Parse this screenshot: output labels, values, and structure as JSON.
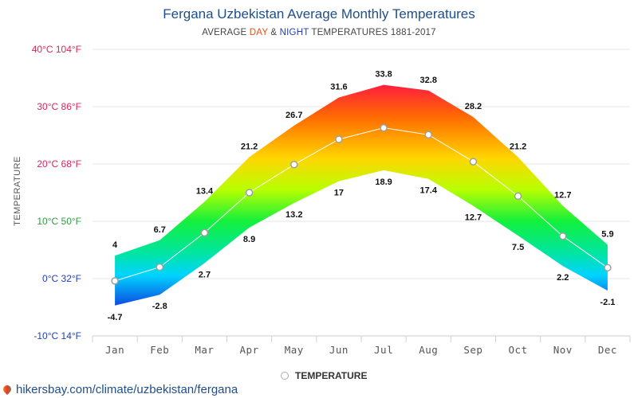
{
  "chart_data": {
    "type": "area",
    "title": "Fergana Uzbekistan Average Monthly Temperatures",
    "subtitle_prefix": "AVERAGE ",
    "subtitle_day": "DAY",
    "subtitle_amp": " & ",
    "subtitle_night": "NIGHT",
    "subtitle_suffix": " TEMPERATURES 1881-2017",
    "ylabel": "TEMPERATURE",
    "categories": [
      "Jan",
      "Feb",
      "Mar",
      "Apr",
      "May",
      "Jun",
      "Jul",
      "Aug",
      "Sep",
      "Oct",
      "Nov",
      "Dec"
    ],
    "series": [
      {
        "name": "DAY",
        "values": [
          4,
          6.7,
          13.4,
          21.2,
          26.7,
          31.6,
          33.8,
          32.8,
          28.2,
          21.2,
          12.7,
          5.9
        ]
      },
      {
        "name": "NIGHT",
        "values": [
          -4.7,
          -2.8,
          2.7,
          8.9,
          13.2,
          17,
          18.9,
          17.4,
          12.7,
          7.5,
          2.2,
          -2.1
        ]
      },
      {
        "name": "TEMPERATURE",
        "values": [
          -0.4,
          2.0,
          8.0,
          15.0,
          19.9,
          24.3,
          26.3,
          25.1,
          20.4,
          14.4,
          7.4,
          1.9
        ]
      }
    ],
    "ylim": [
      -10,
      40
    ],
    "yticks": [
      {
        "value": 40,
        "label": "40°C 104°F",
        "color": "#e0245e"
      },
      {
        "value": 30,
        "label": "30°C 86°F",
        "color": "#e0245e"
      },
      {
        "value": 20,
        "label": "20°C 68°F",
        "color": "#e0245e"
      },
      {
        "value": 10,
        "label": "10°C 50°F",
        "color": "#2e9e3e"
      },
      {
        "value": 0,
        "label": "0°C 32°F",
        "color": "#1f3fbf"
      },
      {
        "value": -10,
        "label": "-10°C 14°F",
        "color": "#1f3fbf"
      }
    ],
    "grid": true,
    "legend": "bottom-center",
    "legend_label": "TEMPERATURE"
  },
  "source": "hikersbay.com/climate/uzbekistan/fergana",
  "colors": {
    "title": "#1f4e8c",
    "day": "#e8501a",
    "night": "#1f3fbf"
  }
}
